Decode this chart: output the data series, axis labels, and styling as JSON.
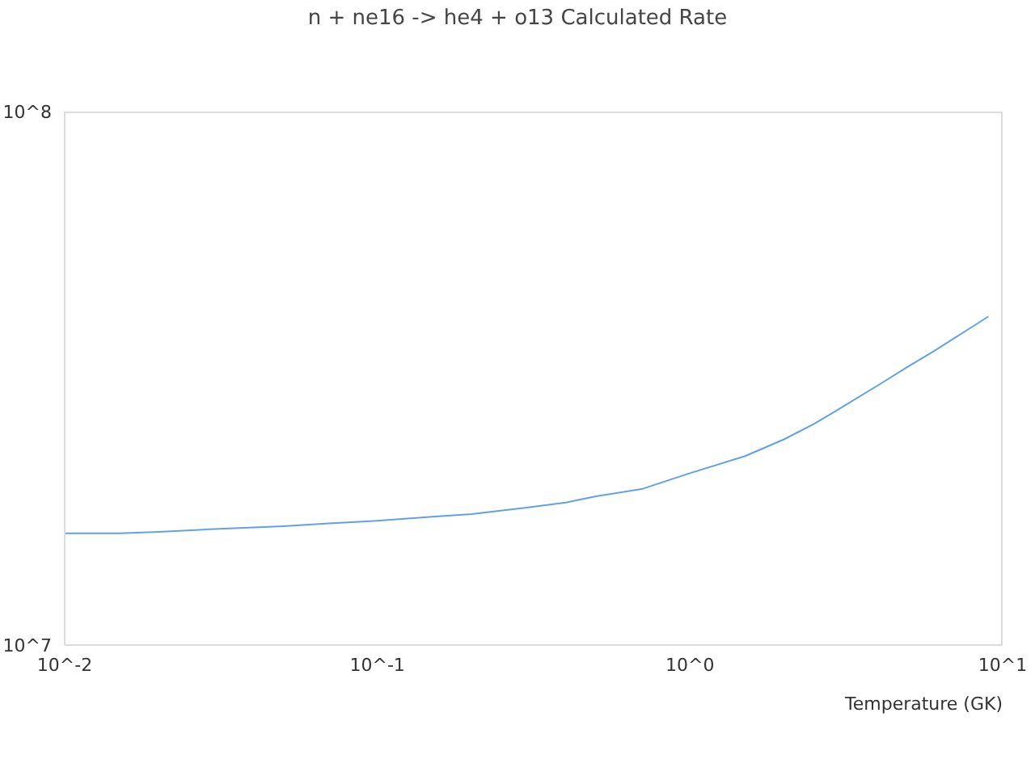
{
  "chart_data": {
    "type": "line",
    "title": "n + ne16 -> he4 + o13 Calculated Rate",
    "xlabel": "Temperature (GK)",
    "x": [
      0.01,
      0.015,
      0.02,
      0.03,
      0.05,
      0.07,
      0.1,
      0.15,
      0.2,
      0.3,
      0.4,
      0.5,
      0.7,
      1,
      1.5,
      2,
      2.5,
      3,
      4,
      5,
      6,
      7,
      8,
      9
    ],
    "series": [
      {
        "color": "#5fa2e8",
        "values": [
          16200000,
          16200000,
          16300000,
          16500000,
          16700000,
          16900000,
          17100000,
          17400000,
          17600000,
          18100000,
          18500000,
          19000000,
          19600000,
          21000000,
          22600000,
          24300000,
          26000000,
          27700000,
          30700000,
          33300000,
          35500000,
          37600000,
          39500000,
          41300000
        ]
      }
    ],
    "xlim": [
      0.01,
      10
    ],
    "ylim": [
      10000000,
      100000000
    ],
    "xticks": [
      {
        "value": 0.01,
        "label": "10^-2"
      },
      {
        "value": 0.1,
        "label": "10^-1"
      },
      {
        "value": 1,
        "label": "10^0"
      },
      {
        "value": 10,
        "label": "10^1"
      }
    ],
    "yticks": [
      {
        "value": 10000000,
        "label": "10^7"
      },
      {
        "value": 100000000,
        "label": "10^8"
      }
    ],
    "log": "xy",
    "grid": false,
    "marker": "none",
    "line_style": "solid"
  }
}
